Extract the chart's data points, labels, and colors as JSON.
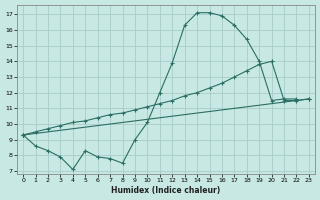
{
  "xlabel": "Humidex (Indice chaleur)",
  "background_color": "#c8e8e4",
  "grid_color": "#a8ccca",
  "line_color": "#2a6e64",
  "xlim": [
    -0.5,
    23.5
  ],
  "ylim": [
    6.8,
    17.6
  ],
  "xticks": [
    0,
    1,
    2,
    3,
    4,
    5,
    6,
    7,
    8,
    9,
    10,
    11,
    12,
    13,
    14,
    15,
    16,
    17,
    18,
    19,
    20,
    21,
    22,
    23
  ],
  "yticks": [
    7,
    8,
    9,
    10,
    11,
    12,
    13,
    14,
    15,
    16,
    17
  ],
  "curve1_x": [
    0,
    1,
    2,
    3,
    4,
    5,
    6,
    7,
    8,
    9,
    10,
    11,
    12,
    13,
    14,
    15,
    16,
    17,
    18,
    19,
    20,
    21,
    22
  ],
  "curve1_y": [
    9.3,
    8.6,
    8.3,
    7.9,
    7.1,
    8.3,
    7.9,
    7.8,
    7.5,
    9.0,
    10.1,
    12.0,
    13.9,
    16.3,
    17.1,
    17.1,
    16.9,
    16.3,
    15.4,
    14.0,
    11.5,
    11.6,
    11.6
  ],
  "curve2_x": [
    0,
    1,
    2,
    3,
    4,
    5,
    6,
    7,
    8,
    9,
    10,
    11,
    12,
    13,
    14,
    15,
    16,
    17,
    18,
    19,
    20,
    21,
    22,
    23
  ],
  "curve2_y": [
    9.3,
    9.5,
    9.7,
    9.9,
    10.1,
    10.2,
    10.4,
    10.6,
    10.7,
    10.9,
    11.1,
    11.3,
    11.5,
    11.8,
    12.0,
    12.3,
    12.6,
    13.0,
    13.4,
    13.8,
    14.0,
    11.5,
    11.5,
    11.6
  ],
  "curve3_x": [
    0,
    23
  ],
  "curve3_y": [
    9.3,
    11.6
  ],
  "figsize": [
    3.2,
    2.0
  ],
  "dpi": 100
}
